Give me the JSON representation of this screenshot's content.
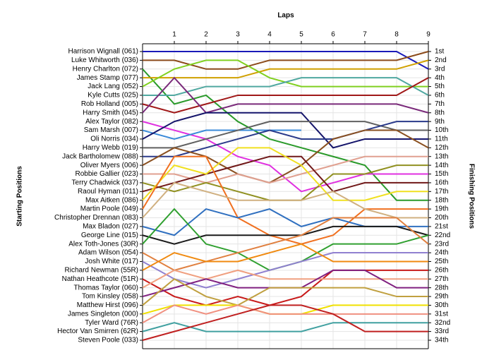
{
  "chart_data": {
    "type": "bump",
    "title": "Laps",
    "y_label": "Starting Positions",
    "y2_label": "Finishing Positions",
    "x": [
      0,
      1,
      2,
      3,
      4,
      5,
      6,
      7,
      8,
      9
    ],
    "xlim": [
      0,
      9
    ],
    "xticks": [
      1,
      2,
      3,
      4,
      5,
      6,
      7,
      8,
      9
    ],
    "ylim": [
      1,
      34
    ],
    "grid": true,
    "finishing_labels": [
      "1st",
      "2nd",
      "3rd",
      "4th",
      "5th",
      "6th",
      "7th",
      "8th",
      "9th",
      "10th",
      "11th",
      "12th",
      "13th",
      "14th",
      "15th",
      "16th",
      "17th",
      "18th",
      "19th",
      "20th",
      "21st",
      "22nd",
      "23rd",
      "24th",
      "25th",
      "26th",
      "27th",
      "28th",
      "29th",
      "30th",
      "31st",
      "32nd",
      "33rd",
      "34th"
    ],
    "series": [
      {
        "name": "Harrison Wignall (061)",
        "color": "#1a1ab8",
        "values": [
          1,
          1,
          1,
          1,
          1,
          1,
          1,
          1,
          1,
          3
        ]
      },
      {
        "name": "Luke Whitworth (036)",
        "color": "#8b4a1a",
        "values": [
          2,
          2,
          3,
          3,
          2,
          2,
          2,
          2,
          2,
          1
        ]
      },
      {
        "name": "Henry Charlton (072)",
        "color": "#2a9a2a",
        "values": [
          3,
          7,
          6,
          9,
          11,
          12,
          13,
          14,
          18,
          18
        ]
      },
      {
        "name": "James Stamp (077)",
        "color": "#d0a000",
        "values": [
          4,
          4,
          4,
          4,
          3,
          3,
          3,
          3,
          3,
          2
        ]
      },
      {
        "name": "Jack Lang (052)",
        "color": "#80d020",
        "values": [
          5,
          3,
          2,
          2,
          4,
          5,
          5,
          5,
          5,
          5
        ]
      },
      {
        "name": "Kyle Cutts (025)",
        "color": "#50a8a0",
        "values": [
          6,
          6,
          5,
          5,
          5,
          4,
          4,
          4,
          4,
          6
        ]
      },
      {
        "name": "Rob Holland (005)",
        "color": "#a01818",
        "values": [
          7,
          8,
          7,
          6,
          6,
          6,
          6,
          6,
          6,
          4
        ]
      },
      {
        "name": "Harry Smith (045)",
        "color": "#7a2a7a",
        "values": [
          8,
          4,
          8,
          7,
          7,
          7,
          7,
          7,
          7,
          8
        ]
      },
      {
        "name": "Alex Taylor (082)",
        "color": "#e030e0",
        "values": [
          9,
          10,
          11,
          13,
          14,
          17,
          16,
          15,
          15,
          15
        ]
      },
      {
        "name": "Sam Marsh (007)",
        "color": "#3a8ad8",
        "values": [
          10,
          11,
          10,
          10,
          10,
          10,
          null,
          null,
          null,
          null
        ]
      },
      {
        "name": "Oli Norris (034)",
        "color": "#15156b",
        "values": [
          11,
          9,
          8,
          8,
          8,
          8,
          12,
          11,
          11,
          11
        ]
      },
      {
        "name": "Harry Webb (019)",
        "color": "#606060",
        "values": [
          12,
          12,
          11,
          10,
          9,
          9,
          9,
          9,
          10,
          10
        ]
      },
      {
        "name": "Jack Bartholomew (088)",
        "color": "#2a3a8a",
        "values": [
          13,
          13,
          12,
          11,
          10,
          11,
          11,
          10,
          9,
          9
        ]
      },
      {
        "name": "Oliver Myers (006)",
        "color": "#8a5020",
        "values": [
          14,
          12,
          13,
          15,
          16,
          14,
          11,
          10,
          10,
          12
        ]
      },
      {
        "name": "Robbie Gallier (023)",
        "color": "#e0a090",
        "values": [
          15,
          15,
          16,
          15,
          16,
          15,
          14,
          13,
          13,
          13
        ]
      },
      {
        "name": "Terry Chadwick (037)",
        "color": "#909020",
        "values": [
          16,
          17,
          16,
          17,
          18,
          18,
          15,
          15,
          14,
          14
        ]
      },
      {
        "name": "Raoul Hyman (011)",
        "color": "#701818",
        "values": [
          17,
          16,
          15,
          14,
          13,
          13,
          17,
          16,
          16,
          16
        ]
      },
      {
        "name": "Max Aitken (086)",
        "color": "#f0e020",
        "values": [
          18,
          14,
          15,
          12,
          12,
          14,
          18,
          18,
          17,
          17
        ]
      },
      {
        "name": "Martin Poole (049)",
        "color": "#f07020",
        "values": [
          19,
          13,
          13,
          20,
          22,
          23,
          22,
          19,
          19,
          19
        ]
      },
      {
        "name": "Christopher Drennan (083)",
        "color": "#d0b080",
        "values": [
          20,
          16,
          17,
          18,
          18,
          18,
          17,
          19,
          20,
          20
        ]
      },
      {
        "name": "Max Bladon (027)",
        "color": "#3070c0",
        "values": [
          21,
          22,
          19,
          20,
          19,
          21,
          20,
          21,
          21,
          21
        ]
      },
      {
        "name": "George Line (015)",
        "color": "#1a1a1a",
        "values": [
          22,
          23,
          22,
          22,
          22,
          22,
          21,
          21,
          21,
          22
        ]
      },
      {
        "name": "Alex Toth-Jones (30R)",
        "color": "#30a030",
        "values": [
          23,
          19,
          23,
          24,
          26,
          25,
          23,
          23,
          23,
          22
        ]
      },
      {
        "name": "Adam Wilson (054)",
        "color": "#e08040",
        "values": [
          24,
          26,
          25,
          24,
          23,
          22,
          20,
          20,
          20,
          23
        ]
      },
      {
        "name": "Josh White (017)",
        "color": "#9080d0",
        "values": [
          25,
          27,
          28,
          27,
          26,
          25,
          24,
          24,
          24,
          24
        ]
      },
      {
        "name": "Richard Newman (55R)",
        "color": "#f08a10",
        "values": [
          26,
          24,
          25,
          25,
          24,
          23,
          25,
          25,
          25,
          25
        ]
      },
      {
        "name": "Nathan Heathcote (51R)",
        "color": "#c81a1a",
        "values": [
          27,
          29,
          30,
          29,
          30,
          29,
          26,
          26,
          26,
          26
        ]
      },
      {
        "name": "Thomas Taylor (060)",
        "color": "#f0a080",
        "values": [
          28,
          26,
          27,
          26,
          27,
          27,
          27,
          27,
          27,
          27
        ]
      },
      {
        "name": "Tom Kinsley (058)",
        "color": "#802080",
        "values": [
          29,
          28,
          27,
          28,
          28,
          28,
          26,
          26,
          28,
          28
        ]
      },
      {
        "name": "Matthew Hirst (096)",
        "color": "#c0a040",
        "values": [
          30,
          27,
          29,
          30,
          28,
          28,
          28,
          28,
          29,
          29
        ]
      },
      {
        "name": "James Singleton (000)",
        "color": "#f0e000",
        "values": [
          31,
          30,
          30,
          30,
          31,
          31,
          30,
          30,
          30,
          30
        ]
      },
      {
        "name": "Tyler Ward (76R)",
        "color": "#f09080",
        "values": [
          32,
          30,
          31,
          30,
          31,
          31,
          31,
          31,
          31,
          31
        ]
      },
      {
        "name": "Hector Van Smirren (62R)",
        "color": "#40a0a0",
        "values": [
          33,
          32,
          33,
          33,
          33,
          33,
          32,
          32,
          32,
          32
        ]
      },
      {
        "name": "Steven Poole (033)",
        "color": "#c02020",
        "values": [
          34,
          33,
          32,
          31,
          30,
          30,
          31,
          33,
          33,
          33
        ]
      }
    ]
  }
}
